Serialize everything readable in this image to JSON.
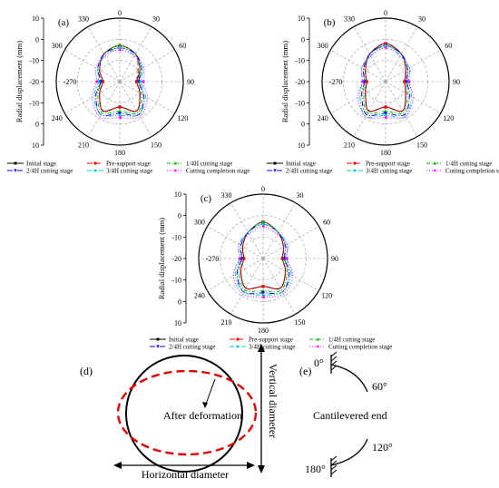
{
  "figure": {
    "panels": [
      {
        "id": "a",
        "label": "(a)"
      },
      {
        "id": "b",
        "label": "(b)"
      },
      {
        "id": "c",
        "label": "(c)"
      }
    ],
    "legend": [
      {
        "name": "Initial stage",
        "color": "#000000",
        "dash": "",
        "marker": "square"
      },
      {
        "name": "Pre-support stage",
        "color": "#ff0000",
        "dash": "6,3",
        "marker": "circle"
      },
      {
        "name": "1/4H cutting stage",
        "color": "#00c000",
        "dash": "4,2,1,2",
        "marker": "triangle"
      },
      {
        "name": "2/4H cutting stage",
        "color": "#0000ff",
        "dash": "6,2,1,2",
        "marker": "triangle-down"
      },
      {
        "name": "3/4H cutting stage",
        "color": "#00cccc",
        "dash": "5,2,1,2,1,2",
        "marker": "diamond"
      },
      {
        "name": "Cutting completion stage",
        "color": "#ff00ff",
        "dash": "1,2",
        "marker": "triangle-left"
      }
    ],
    "diagram_d": {
      "label": "(d)",
      "after_deformation": "After deformation",
      "vertical_diameter": "Vertical diameter",
      "horizontal_diameter": "Horizontal diameter",
      "circle_color": "#000000",
      "ellipse_color": "#e00000"
    },
    "diagram_e": {
      "label": "(e)",
      "angle_0": "0°",
      "angle_60": "60°",
      "angle_120": "120°",
      "angle_180": "180°",
      "cantilever_text": "Cantilevered end"
    }
  },
  "chart_data": [
    {
      "type": "polar-line",
      "panel": "a",
      "ylabel": "Radial displacement (mm)",
      "r_ticks": [
        "10",
        "0",
        "-10",
        "-20",
        "-10",
        "0",
        "10"
      ],
      "angle_labels": [
        "0",
        "30",
        "60",
        "90",
        "120",
        "150",
        "180",
        "210",
        "240",
        "-270",
        "300",
        "330"
      ],
      "r_range": [
        -20,
        10
      ],
      "angles_deg": [
        0,
        30,
        60,
        90,
        120,
        150,
        180,
        210,
        240,
        270,
        300,
        330
      ],
      "series": [
        {
          "name": "Initial stage",
          "values": [
            -3,
            -5,
            -9,
            -12,
            -9,
            -4,
            -8,
            -4,
            -9,
            -12,
            -9,
            -5
          ]
        },
        {
          "name": "Pre-support stage",
          "values": [
            -3,
            -5,
            -10,
            -12,
            -9,
            -4,
            -8,
            -4,
            -9,
            -12,
            -9,
            -5
          ]
        },
        {
          "name": "1/4H cutting stage",
          "values": [
            -3,
            -5,
            -9,
            -11,
            -8,
            -3,
            -6,
            -3,
            -8,
            -11,
            -8,
            -5
          ]
        },
        {
          "name": "2/4H cutting stage",
          "values": [
            -4,
            -5,
            -8,
            -11,
            -7,
            -2,
            -5,
            -2,
            -7,
            -11,
            -8,
            -5
          ]
        },
        {
          "name": "3/4H cutting stage",
          "values": [
            -4,
            -6,
            -8,
            -10,
            -6,
            -2,
            -4,
            -2,
            -6,
            -10,
            -8,
            -6
          ]
        },
        {
          "name": "Cutting completion stage",
          "values": [
            -5,
            -6,
            -7,
            -9,
            -5,
            -1,
            -3,
            -1,
            -5,
            -9,
            -7,
            -6
          ]
        }
      ]
    },
    {
      "type": "polar-line",
      "panel": "b",
      "ylabel": "Radial displacement (mm)",
      "r_ticks": [
        "10",
        "0",
        "-10",
        "-20",
        "-10",
        "0",
        "10"
      ],
      "angle_labels": [
        "0",
        "30",
        "60",
        "90",
        "120",
        "150",
        "180",
        "210",
        "240",
        "-270",
        "300",
        "330"
      ],
      "r_range": [
        -20,
        10
      ],
      "angles_deg": [
        0,
        30,
        60,
        90,
        120,
        150,
        180,
        210,
        240,
        270,
        300,
        330
      ],
      "series": [
        {
          "name": "Initial stage",
          "values": [
            -2,
            -5,
            -9,
            -11,
            -9,
            -4,
            -8,
            -4,
            -9,
            -11,
            -9,
            -5
          ]
        },
        {
          "name": "Pre-support stage",
          "values": [
            -2,
            -5,
            -9,
            -11,
            -9,
            -4,
            -8,
            -4,
            -9,
            -11,
            -9,
            -5
          ]
        },
        {
          "name": "1/4H cutting stage",
          "values": [
            -3,
            -5,
            -8,
            -10,
            -8,
            -3,
            -6,
            -3,
            -8,
            -10,
            -8,
            -5
          ]
        },
        {
          "name": "2/4H cutting stage",
          "values": [
            -3,
            -5,
            -8,
            -10,
            -7,
            -2,
            -5,
            -2,
            -7,
            -10,
            -8,
            -5
          ]
        },
        {
          "name": "3/4H cutting stage",
          "values": [
            -3,
            -6,
            -7,
            -9,
            -6,
            -1,
            -4,
            -1,
            -6,
            -9,
            -7,
            -6
          ]
        },
        {
          "name": "Cutting completion stage",
          "values": [
            -4,
            -6,
            -7,
            -9,
            -5,
            -1,
            -3,
            -1,
            -5,
            -9,
            -7,
            -6
          ]
        }
      ]
    },
    {
      "type": "polar-line",
      "panel": "c",
      "ylabel": "Radial displacement (mm)",
      "r_ticks": [
        "10",
        "0",
        "-10",
        "-20",
        "-10",
        "0",
        "10"
      ],
      "angle_labels": [
        "0",
        "30",
        "60",
        "90",
        "120",
        "150",
        "180",
        "210",
        "240",
        "-270",
        "300",
        "330"
      ],
      "r_range": [
        -20,
        10
      ],
      "angles_deg": [
        0,
        30,
        60,
        90,
        120,
        150,
        180,
        210,
        240,
        270,
        300,
        330
      ],
      "series": [
        {
          "name": "Initial stage",
          "values": [
            -3,
            -6,
            -9,
            -11,
            -8,
            -4,
            -7,
            -4,
            -8,
            -11,
            -9,
            -6
          ]
        },
        {
          "name": "Pre-support stage",
          "values": [
            -3,
            -6,
            -9,
            -11,
            -8,
            -4,
            -7,
            -4,
            -8,
            -11,
            -9,
            -6
          ]
        },
        {
          "name": "1/4H cutting stage",
          "values": [
            -3,
            -6,
            -8,
            -10,
            -7,
            -3,
            -5,
            -3,
            -7,
            -10,
            -8,
            -6
          ]
        },
        {
          "name": "2/4H cutting stage",
          "values": [
            -4,
            -6,
            -8,
            -10,
            -6,
            -2,
            -4,
            -2,
            -6,
            -10,
            -8,
            -6
          ]
        },
        {
          "name": "3/4H cutting stage",
          "values": [
            -4,
            -6,
            -7,
            -9,
            -5,
            -2,
            -3,
            -2,
            -5,
            -9,
            -7,
            -6
          ]
        },
        {
          "name": "Cutting completion stage",
          "values": [
            -5,
            -7,
            -7,
            -9,
            -4,
            -1,
            -2,
            -1,
            -4,
            -9,
            -7,
            -7
          ]
        }
      ]
    }
  ]
}
